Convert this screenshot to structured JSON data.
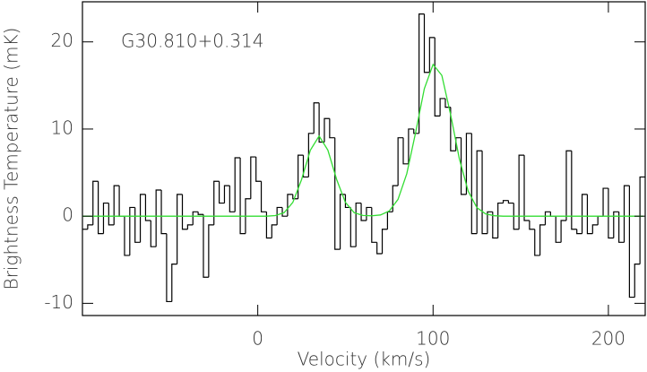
{
  "chart_data": {
    "type": "line",
    "xlabel": "Velocity (km/s)",
    "ylabel": "Brightness Temperature (mK)",
    "annotation": "G30.810+0.314",
    "xlim": [
      -100,
      221
    ],
    "ylim": [
      -11.4,
      24.6
    ],
    "xticks": [
      0,
      100,
      200
    ],
    "yticks": [
      -10,
      0,
      10,
      20
    ],
    "grid": false,
    "series": [
      {
        "type": "step",
        "color": "#000000",
        "bins": [
          -100,
          -97,
          -94,
          -91,
          -88,
          -85,
          -82,
          -79,
          -76,
          -73,
          -70,
          -67,
          -64,
          -61,
          -58,
          -55,
          -52,
          -49,
          -46,
          -43,
          -40,
          -37,
          -34,
          -31,
          -28,
          -25,
          -22,
          -19,
          -16,
          -13,
          -10,
          -7,
          -4,
          -1,
          2,
          5,
          8,
          11,
          14,
          17,
          20,
          23,
          26,
          29,
          32,
          35,
          38,
          41,
          44,
          47,
          50,
          53,
          56,
          59,
          62,
          65,
          68,
          71,
          74,
          77,
          80,
          83,
          86,
          89,
          92,
          95,
          98,
          101,
          104,
          107,
          110,
          113,
          116,
          119,
          122,
          125,
          128,
          131,
          134,
          137,
          140,
          143,
          146,
          149,
          152,
          155,
          158,
          161,
          164,
          167,
          170,
          173,
          176,
          179,
          182,
          185,
          188,
          191,
          194,
          197,
          200,
          203,
          206,
          209,
          212,
          215,
          218,
          221
        ],
        "values": [
          -1.5,
          -1,
          4,
          -2,
          1.5,
          -1,
          3.5,
          0,
          -4.5,
          1,
          -3,
          2.5,
          -0.5,
          -3.5,
          3,
          -2,
          -9.8,
          -5.5,
          2.5,
          -1.5,
          -1,
          0.5,
          0.2,
          -7,
          -1,
          4,
          1.5,
          3.5,
          0.5,
          6.7,
          -2,
          2,
          6.8,
          4,
          0.5,
          -2.5,
          -1,
          1,
          0,
          2.5,
          2,
          7,
          4.5,
          9.5,
          13,
          8.5,
          11.2,
          9,
          -3.8,
          2.5,
          1,
          -3.5,
          1.5,
          -0.5,
          1,
          -3,
          -4.3,
          -1.5,
          0.5,
          3.5,
          9,
          6,
          10,
          9.5,
          23.2,
          16.5,
          20.5,
          11.5,
          13.5,
          12.5,
          7.5,
          9,
          2.5,
          9.5,
          -2,
          7.5,
          -2,
          0.5,
          -2.5,
          1.5,
          1.8,
          1.5,
          -1.5,
          7,
          -0.5,
          -1.5,
          -4.5,
          -1,
          0.5,
          0,
          -3,
          -0.5,
          7.5,
          -1.5,
          -2,
          2.5,
          -2,
          -1,
          0,
          3.2,
          -2.5,
          0.5,
          -3,
          3.5,
          -9.3,
          -5.5,
          4.5
        ]
      },
      {
        "type": "line",
        "color": "#33dd33",
        "x": [
          -100,
          -95,
          -90,
          -85,
          -80,
          -75,
          -70,
          -65,
          -60,
          -55,
          -50,
          -45,
          -40,
          -35,
          -30,
          -25,
          -20,
          -15,
          -10,
          -5,
          0,
          5,
          10,
          15,
          20,
          25,
          30,
          35,
          40,
          45,
          50,
          55,
          60,
          65,
          70,
          75,
          80,
          85,
          90,
          95,
          100,
          105,
          110,
          115,
          120,
          125,
          130,
          135,
          140,
          145,
          150,
          155,
          160,
          165,
          170,
          175,
          180,
          185,
          190,
          195,
          200,
          205,
          210,
          215,
          220
        ],
        "values": [
          0,
          0,
          0,
          0,
          0,
          0,
          0,
          0,
          0,
          0,
          0,
          0,
          0,
          0,
          0,
          0,
          0,
          0,
          0,
          0,
          0,
          0,
          0.07,
          0.4,
          1.58,
          4.21,
          7.57,
          9.2,
          7.57,
          4.21,
          1.58,
          0.4,
          0.08,
          0.04,
          0.14,
          0.6,
          1.93,
          4.87,
          9.56,
          14.62,
          17.41,
          16.15,
          11.67,
          6.57,
          2.88,
          0.98,
          0.26,
          0.05,
          0,
          0,
          0,
          0,
          0,
          0,
          0,
          0,
          0,
          0,
          0,
          0,
          0,
          0,
          0,
          0,
          0
        ]
      }
    ]
  }
}
